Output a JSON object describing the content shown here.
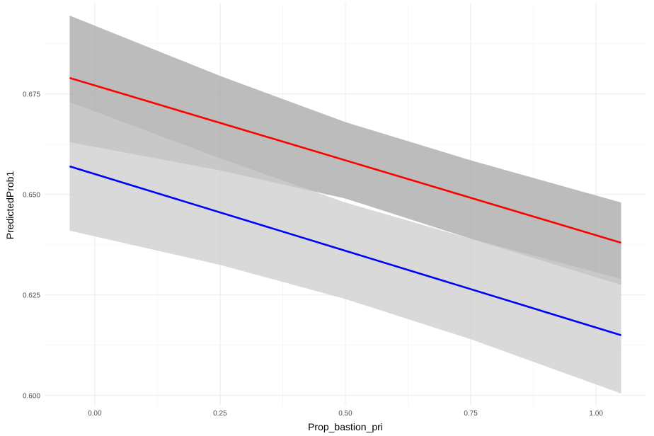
{
  "chart_data": {
    "type": "line",
    "xlabel": "Prop_bastion_pri",
    "ylabel": "PredictedProb1",
    "xlim": [
      -0.1,
      1.1
    ],
    "ylim": [
      0.5975,
      0.6975
    ],
    "x_ticks": [
      0.0,
      0.25,
      0.5,
      0.75,
      1.0
    ],
    "x_tick_labels": [
      "0.00",
      "0.25",
      "0.50",
      "0.75",
      "1.00"
    ],
    "y_ticks": [
      0.6,
      0.625,
      0.65,
      0.675
    ],
    "y_tick_labels": [
      "0.600",
      "0.625",
      "0.650",
      "0.675"
    ],
    "grid": true,
    "legend": "none",
    "series": [
      {
        "color": "#ff0000",
        "ribbon_color": "#a6a6a6",
        "x": [
          -0.05,
          1.05
        ],
        "y": [
          0.679,
          0.638
        ],
        "ribbon": {
          "x": [
            -0.05,
            0.25,
            0.5,
            0.75,
            1.05
          ],
          "lower": [
            0.663,
            0.656,
            0.649,
            0.639,
            0.6275
          ],
          "upper": [
            0.6945,
            0.6795,
            0.668,
            0.6585,
            0.648
          ]
        }
      },
      {
        "color": "#0000ff",
        "ribbon_color": "#cccccc",
        "x": [
          -0.05,
          1.05
        ],
        "y": [
          0.657,
          0.615
        ],
        "ribbon": {
          "x": [
            -0.05,
            0.25,
            0.5,
            0.75,
            1.05
          ],
          "lower": [
            0.641,
            0.6325,
            0.624,
            0.614,
            0.6005
          ],
          "upper": [
            0.673,
            0.659,
            0.648,
            0.639,
            0.629
          ]
        }
      }
    ]
  }
}
